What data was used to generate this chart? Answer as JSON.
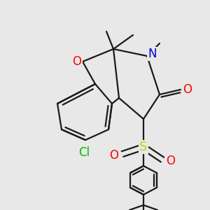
{
  "bg_color": "#e8e8e8",
  "bond_color": "#1a1a1a",
  "bond_width": 1.6,
  "atom_colors": {
    "O": "#ff0000",
    "N": "#0000cc",
    "S": "#cccc00",
    "Cl": "#00bb00",
    "C": "#1a1a1a"
  }
}
